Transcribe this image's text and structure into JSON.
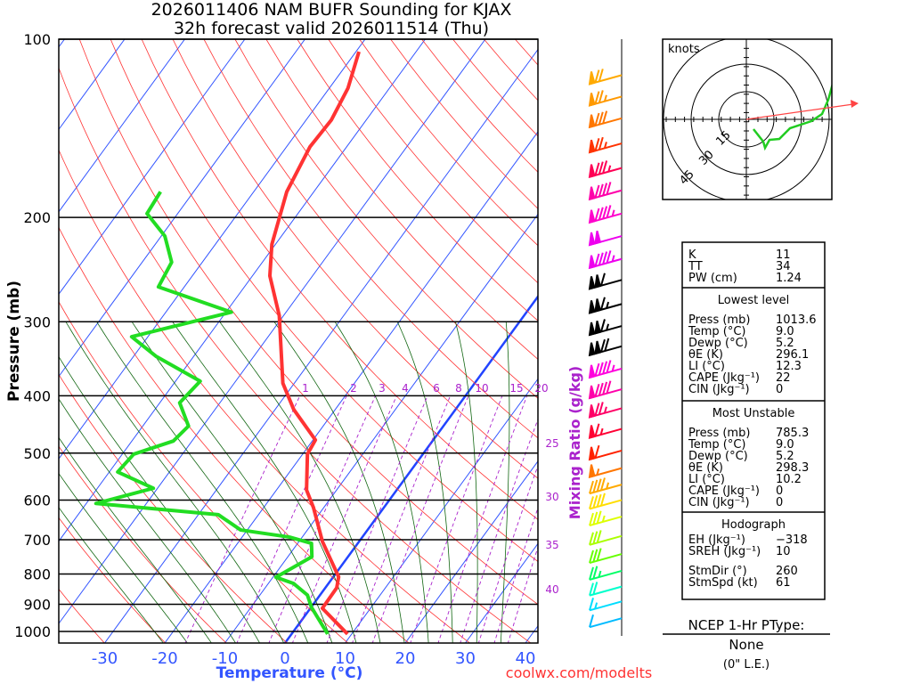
{
  "title": {
    "line1": "2026011406 NAM BUFR Sounding for KJAX",
    "line2": "32h forecast valid 2026011514 (Thu)"
  },
  "credit": "coolwx.com/modelts",
  "chart_data": {
    "type": "line",
    "subtype": "skew-t log-p",
    "xlabel": "Temperature (°C)",
    "ylabel": "Pressure (mb)",
    "x_ticks": [
      "-30",
      "-20",
      "-10",
      "0",
      "10",
      "20",
      "30",
      "40"
    ],
    "x_tick_values": [
      -30,
      -20,
      -10,
      0,
      10,
      20,
      30,
      40
    ],
    "y_ticks": [
      "100",
      "200",
      "300",
      "400",
      "500",
      "600",
      "700",
      "800",
      "900",
      "1000"
    ],
    "y_tick_values": [
      100,
      200,
      300,
      400,
      500,
      600,
      700,
      800,
      900,
      1000
    ],
    "plim": [
      1046,
      100
    ],
    "mixing_ratio_label": "Mixing Ratio (g/kg)",
    "mixing_ratio_values": [
      "1",
      "2",
      "3",
      "4",
      "6",
      "8",
      "10",
      "15",
      "20",
      "25",
      "30",
      "35",
      "40"
    ],
    "series": [
      {
        "name": "Temperature",
        "color": "#ff3333",
        "points": [
          [
            1010,
            9.3
          ],
          [
            914,
            2.0
          ],
          [
            844,
            1.9
          ],
          [
            809,
            0.9
          ],
          [
            705,
            -6.1
          ],
          [
            618,
            -11.7
          ],
          [
            577,
            -15.0
          ],
          [
            502,
            -19.2
          ],
          [
            475,
            -19.6
          ],
          [
            422,
            -26.9
          ],
          [
            381,
            -31.9
          ],
          [
            293,
            -40.7
          ],
          [
            251,
            -47.1
          ],
          [
            222,
            -50.6
          ],
          [
            181,
            -54.5
          ],
          [
            152,
            -56.1
          ],
          [
            137,
            -55.8
          ],
          [
            121,
            -56.9
          ],
          [
            105,
            -59.5
          ]
        ]
      },
      {
        "name": "Dewpoint",
        "color": "#22dd22",
        "points": [
          [
            1010,
            6.0
          ],
          [
            911,
            0.1
          ],
          [
            868,
            -2.1
          ],
          [
            830,
            -5.8
          ],
          [
            810,
            -9.5
          ],
          [
            748,
            -6.0
          ],
          [
            710,
            -7.7
          ],
          [
            693,
            -12.1
          ],
          [
            674,
            -21.1
          ],
          [
            635,
            -26.7
          ],
          [
            608,
            -48.4
          ],
          [
            573,
            -40.7
          ],
          [
            538,
            -48.6
          ],
          [
            502,
            -48.1
          ],
          [
            477,
            -43.1
          ],
          [
            450,
            -42.4
          ],
          [
            411,
            -46.7
          ],
          [
            378,
            -45.9
          ],
          [
            343,
            -56.3
          ],
          [
            318,
            -62.7
          ],
          [
            289,
            -49.1
          ],
          [
            262,
            -64.3
          ],
          [
            238,
            -65.1
          ],
          [
            215,
            -69.4
          ],
          [
            197,
            -75.1
          ],
          [
            181,
            -75.5
          ]
        ]
      }
    ],
    "wind_barbs": [
      {
        "p": 115,
        "spd": 70,
        "color": "#ffaa00"
      },
      {
        "p": 125,
        "spd": 75,
        "color": "#ff9900"
      },
      {
        "p": 136,
        "spd": 80,
        "color": "#ff7700"
      },
      {
        "p": 150,
        "spd": 75,
        "color": "#ff3300"
      },
      {
        "p": 165,
        "spd": 85,
        "color": "#ff0055"
      },
      {
        "p": 180,
        "spd": 90,
        "color": "#ff00aa"
      },
      {
        "p": 197,
        "spd": 95,
        "color": "#ff00cc"
      },
      {
        "p": 215,
        "spd": 100,
        "color": "#ee00ee"
      },
      {
        "p": 235,
        "spd": 95,
        "color": "#ee00ee"
      },
      {
        "p": 255,
        "spd": 110,
        "color": "#000000"
      },
      {
        "p": 280,
        "spd": 115,
        "color": "#000000"
      },
      {
        "p": 305,
        "spd": 115,
        "color": "#000000"
      },
      {
        "p": 330,
        "spd": 120,
        "color": "#000000"
      },
      {
        "p": 360,
        "spd": 95,
        "color": "#ff00dd"
      },
      {
        "p": 390,
        "spd": 90,
        "color": "#ff00aa"
      },
      {
        "p": 420,
        "spd": 75,
        "color": "#ff0066"
      },
      {
        "p": 455,
        "spd": 65,
        "color": "#ff0033"
      },
      {
        "p": 495,
        "spd": 60,
        "color": "#ff2200"
      },
      {
        "p": 530,
        "spd": 55,
        "color": "#ff7700"
      },
      {
        "p": 565,
        "spd": 45,
        "color": "#ffaa00"
      },
      {
        "p": 600,
        "spd": 40,
        "color": "#ffdd00"
      },
      {
        "p": 640,
        "spd": 35,
        "color": "#ddff00"
      },
      {
        "p": 690,
        "spd": 30,
        "color": "#aaff00"
      },
      {
        "p": 740,
        "spd": 30,
        "color": "#66ff00"
      },
      {
        "p": 790,
        "spd": 25,
        "color": "#00ff66"
      },
      {
        "p": 840,
        "spd": 20,
        "color": "#00ffcc"
      },
      {
        "p": 890,
        "spd": 15,
        "color": "#00ddff"
      },
      {
        "p": 950,
        "spd": 10,
        "color": "#00bbff"
      }
    ]
  },
  "hodograph": {
    "units_label": "knots",
    "ring_labels": [
      "15",
      "30",
      "45"
    ],
    "trace_color": "#22cc22",
    "storm_motion_color": "#ff4444"
  },
  "indices": {
    "top": [
      {
        "label": "K",
        "value": "11"
      },
      {
        "label": "TT",
        "value": "34"
      },
      {
        "label": "PW (cm)",
        "value": "1.24"
      }
    ],
    "lowest": {
      "title": "Lowest level",
      "rows": [
        {
          "label": "Press (mb)",
          "value": "1013.6"
        },
        {
          "label": "Temp (°C)",
          "value": "9.0"
        },
        {
          "label": "Dewp (°C)",
          "value": "5.2"
        },
        {
          "label": "θE (K)",
          "value": "296.1"
        },
        {
          "label": "LI (°C)",
          "value": "12.3"
        },
        {
          "label": "CAPE (Jkg⁻¹)",
          "value": "22"
        },
        {
          "label": "CIN (Jkg⁻¹)",
          "value": "0"
        }
      ]
    },
    "unstable": {
      "title": "Most Unstable",
      "rows": [
        {
          "label": "Press (mb)",
          "value": "785.3"
        },
        {
          "label": "Temp (°C)",
          "value": "9.0"
        },
        {
          "label": "Dewp (°C)",
          "value": "5.2"
        },
        {
          "label": "θE (K)",
          "value": "298.3"
        },
        {
          "label": "LI (°C)",
          "value": "10.2"
        },
        {
          "label": "CAPE (Jkg⁻¹)",
          "value": "0"
        },
        {
          "label": "CIN (Jkg⁻¹)",
          "value": "0"
        }
      ]
    },
    "hodo": {
      "title": "Hodograph",
      "rows": [
        {
          "label": "EH (Jkg⁻¹)",
          "value": "−318"
        },
        {
          "label": "SREH (Jkg⁻¹)",
          "value": "10"
        },
        {
          "label": "StmDir (°)",
          "value": "260"
        },
        {
          "label": "StmSpd (kt)",
          "value": "61"
        }
      ]
    }
  },
  "ptype": {
    "title": "NCEP 1-Hr PType:",
    "value": "None",
    "amount": "(0\" L.E.)"
  }
}
